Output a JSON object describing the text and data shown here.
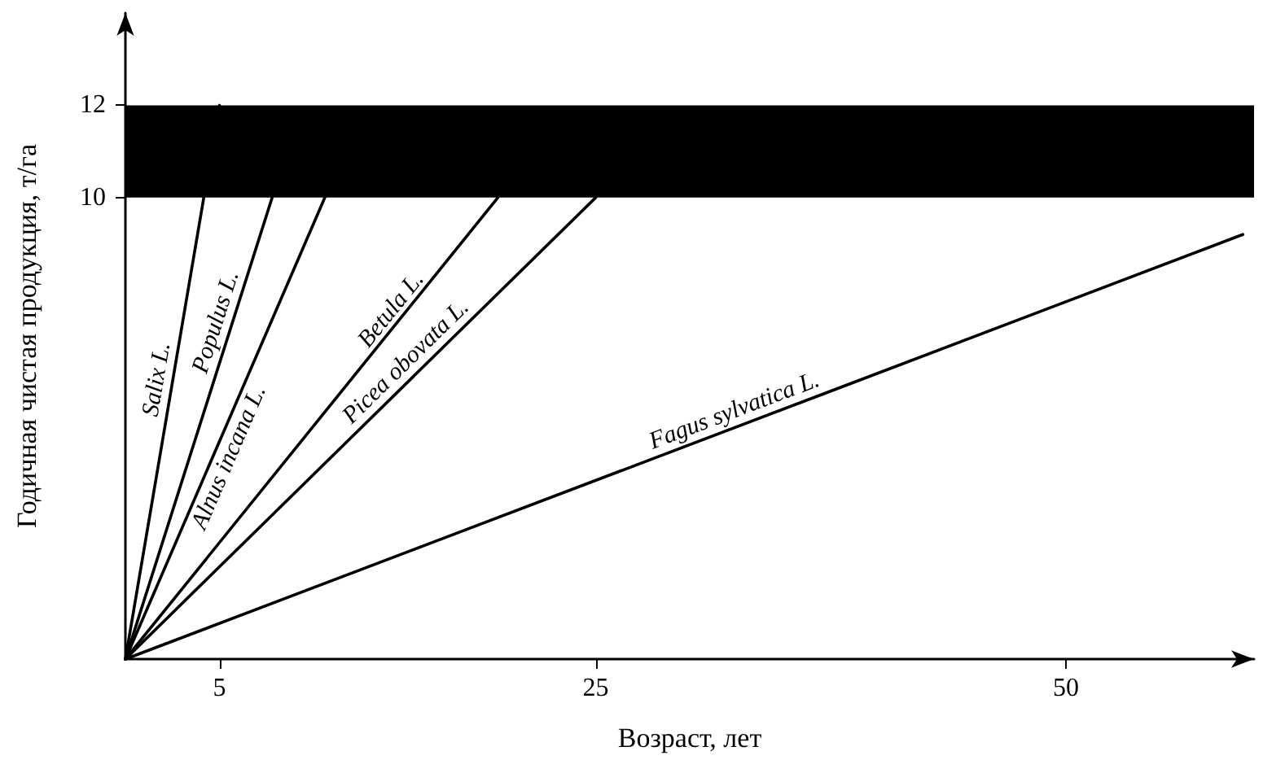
{
  "chart_data": {
    "type": "line",
    "xlabel": "Возраст, лет",
    "ylabel": "Годичная чистая продукция, т/га",
    "xlim": [
      0,
      60
    ],
    "xticks": [
      5,
      25,
      50
    ],
    "ylim": [
      0,
      14
    ],
    "yticks": [
      10,
      12
    ],
    "grid": false,
    "legend": false,
    "marker": "none",
    "line_style": "solid",
    "series": [
      {
        "name": "Salix L.",
        "color": "#000000",
        "x": [
          0,
          5
        ],
        "values": [
          0,
          12
        ]
      },
      {
        "name": "Populus L.",
        "color": "#000000",
        "x": [
          0,
          7.8
        ],
        "values": [
          0,
          10
        ]
      },
      {
        "name": "Alnus incana L.",
        "color": "#000000",
        "x": [
          0,
          10.6
        ],
        "values": [
          0,
          10
        ]
      },
      {
        "name": "Betula L.",
        "color": "#000000",
        "x": [
          0,
          19.8
        ],
        "values": [
          0,
          10
        ]
      },
      {
        "name": "Picea obovata L.",
        "color": "#000000",
        "x": [
          0,
          25
        ],
        "values": [
          0,
          10
        ]
      },
      {
        "name": "Fagus sylvatica L.",
        "color": "#000000",
        "x": [
          0,
          59.4
        ],
        "values": [
          0,
          9.2
        ]
      }
    ],
    "bands": [
      {
        "axis": "y",
        "from": 10,
        "to": 12,
        "color": "#000000"
      }
    ]
  }
}
